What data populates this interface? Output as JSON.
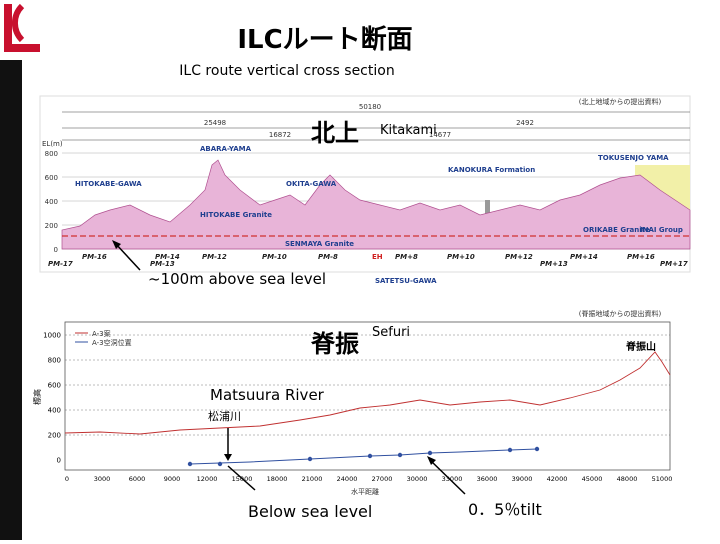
{
  "header": {
    "title": "ILCルート断面",
    "subtitle": "ILC route vertical cross section"
  },
  "kitakami": {
    "label_jp": "北上",
    "label_en": "Kitakami",
    "source": "(北上地域からの提出資料)",
    "y_label": "EL(m)",
    "yticks": [
      800,
      600,
      400,
      200,
      0
    ],
    "dims": [
      "50180",
      "25498",
      "16872",
      "14677",
      "2492"
    ],
    "places": [
      "ABARA-YAMA",
      "HITOKABE-GAWA",
      "OKITA-GAWA",
      "KANOKURA Formation",
      "TOKUSENJO YAMA",
      "HITOKABE Granite",
      "SENMAYA Granite",
      "ORIKABE Granite",
      "INAI Group",
      "SATETSU-GAWA",
      "EH"
    ],
    "markers": [
      "PM-17",
      "PM-16",
      "PM-14",
      "PM-13",
      "PM-12",
      "PM-10",
      "PM-8",
      "PM+8",
      "PM+10",
      "PM+12",
      "PM+13",
      "PM+14",
      "PM+16",
      "PM+17"
    ],
    "annotation": "~100m above sea level"
  },
  "sefuri": {
    "label_jp": "脊振",
    "label_en": "Sefuri",
    "source": "(脊振地域からの提出資料)",
    "legend": [
      "A-3案",
      "A-3空洞位置"
    ],
    "y_label": "標高",
    "x_label": "水平距離",
    "peak": "脊振山",
    "yticks": [
      1000,
      800,
      600,
      400,
      200,
      0
    ],
    "xticks": [
      0,
      3000,
      6000,
      9000,
      12000,
      15000,
      18000,
      21000,
      24000,
      27000,
      30000,
      33000,
      36000,
      39000,
      42000,
      45000,
      48000,
      51000
    ],
    "river_en": "Matsuura River",
    "river_jp": "松浦川",
    "below": "Below sea level",
    "tilt": "0．5％tilt"
  }
}
